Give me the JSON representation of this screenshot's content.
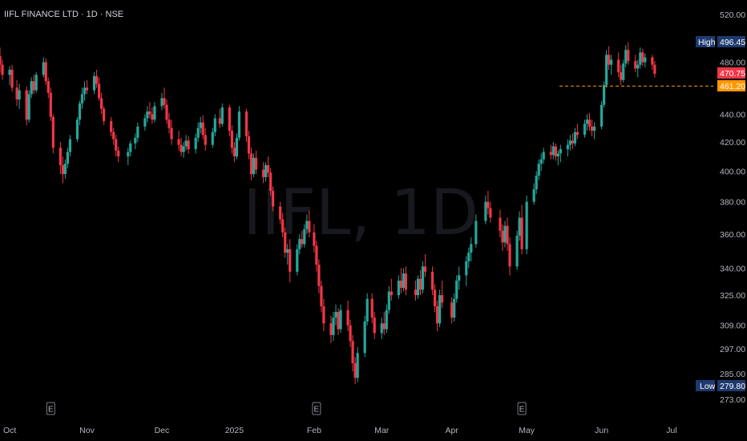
{
  "header": {
    "title": "IIFL FINANCE LTD · 1D · NSE"
  },
  "watermark": "IIFL, 1D",
  "colors": {
    "up": "#26a69a",
    "down": "#f23645",
    "background": "#000000",
    "text": "#b2b5be",
    "high_low_tag": "#1e3a6e",
    "last_price_tag": "#f23645",
    "level_line": "#ff9800"
  },
  "price_tags": {
    "high_label": "High",
    "high_value": "496.45",
    "low_label": "Low",
    "low_value": "279.80",
    "last": "470.75",
    "level": "461.20"
  },
  "events": [
    {
      "label": "E",
      "date": "2024-10-17"
    },
    {
      "label": "E",
      "date": "2025-02-04"
    },
    {
      "label": "E",
      "date": "2025-04-30"
    }
  ],
  "chart_data": {
    "type": "candlestick",
    "title": "IIFL FINANCE LTD · 1D · NSE",
    "y_scale": "log",
    "y_ticks": [
      "520.00",
      "480.00",
      "440.00",
      "420.00",
      "400.00",
      "380.00",
      "360.00",
      "340.00",
      "325.00",
      "309.00",
      "297.00",
      "285.00",
      "273.00"
    ],
    "x_ticks": [
      {
        "label": "Oct",
        "date": "2024-10-01"
      },
      {
        "label": "Nov",
        "date": "2024-11-01"
      },
      {
        "label": "Dec",
        "date": "2024-12-02"
      },
      {
        "label": "2025",
        "date": "2025-01-01"
      },
      {
        "label": "Feb",
        "date": "2025-02-03"
      },
      {
        "label": "Mar",
        "date": "2025-03-03"
      },
      {
        "label": "Apr",
        "date": "2025-04-01"
      },
      {
        "label": "May",
        "date": "2025-05-02"
      },
      {
        "label": "Jun",
        "date": "2025-06-02"
      },
      {
        "label": "Jul",
        "date": "2025-07-01"
      }
    ],
    "level_line": 461.2,
    "high": 496.45,
    "low": 279.8,
    "last": 470.75,
    "candles": [
      [
        "2024-09-26",
        485,
        492,
        472,
        478
      ],
      [
        "2024-09-27",
        478,
        482,
        466,
        470
      ],
      [
        "2024-09-30",
        470,
        477,
        462,
        474
      ],
      [
        "2024-10-01",
        474,
        478,
        457,
        460
      ],
      [
        "2024-10-03",
        460,
        466,
        446,
        451
      ],
      [
        "2024-10-04",
        451,
        463,
        444,
        458
      ],
      [
        "2024-10-07",
        458,
        461,
        432,
        436
      ],
      [
        "2024-10-08",
        436,
        458,
        434,
        455
      ],
      [
        "2024-10-09",
        455,
        468,
        452,
        465
      ],
      [
        "2024-10-10",
        465,
        470,
        455,
        458
      ],
      [
        "2024-10-11",
        458,
        472,
        456,
        470
      ],
      [
        "2024-10-14",
        470,
        484,
        468,
        480
      ],
      [
        "2024-10-15",
        480,
        483,
        462,
        465
      ],
      [
        "2024-10-16",
        465,
        468,
        452,
        456
      ],
      [
        "2024-10-17",
        456,
        460,
        435,
        438
      ],
      [
        "2024-10-18",
        438,
        440,
        412,
        416
      ],
      [
        "2024-10-21",
        416,
        420,
        398,
        404
      ],
      [
        "2024-10-22",
        404,
        410,
        392,
        398
      ],
      [
        "2024-10-23",
        398,
        408,
        395,
        405
      ],
      [
        "2024-10-24",
        405,
        416,
        402,
        413
      ],
      [
        "2024-10-25",
        413,
        425,
        410,
        422
      ],
      [
        "2024-10-28",
        422,
        438,
        420,
        436
      ],
      [
        "2024-10-29",
        436,
        450,
        432,
        448
      ],
      [
        "2024-10-30",
        448,
        460,
        444,
        455
      ],
      [
        "2024-10-31",
        455,
        465,
        450,
        460
      ],
      [
        "2024-11-01",
        460,
        466,
        455,
        458
      ],
      [
        "2024-11-04",
        458,
        472,
        455,
        469
      ],
      [
        "2024-11-05",
        469,
        474,
        460,
        463
      ],
      [
        "2024-11-06",
        463,
        468,
        450,
        452
      ],
      [
        "2024-11-07",
        452,
        456,
        440,
        444
      ],
      [
        "2024-11-08",
        444,
        446,
        432,
        435
      ],
      [
        "2024-11-11",
        435,
        438,
        424,
        427
      ],
      [
        "2024-11-12",
        427,
        430,
        418,
        422
      ],
      [
        "2024-11-13",
        422,
        425,
        410,
        414
      ],
      [
        "2024-11-14",
        414,
        417,
        406,
        410
      ],
      [
        "2024-11-18",
        410,
        416,
        404,
        413
      ],
      [
        "2024-11-19",
        413,
        421,
        410,
        419
      ],
      [
        "2024-11-21",
        419,
        426,
        415,
        423
      ],
      [
        "2024-11-22",
        423,
        434,
        420,
        431
      ],
      [
        "2024-11-25",
        431,
        440,
        428,
        437
      ],
      [
        "2024-11-26",
        437,
        446,
        434,
        442
      ],
      [
        "2024-11-27",
        442,
        449,
        437,
        440
      ],
      [
        "2024-11-28",
        440,
        445,
        433,
        436
      ],
      [
        "2024-11-29",
        436,
        449,
        434,
        446
      ],
      [
        "2024-12-02",
        446,
        456,
        443,
        452
      ],
      [
        "2024-12-03",
        452,
        460,
        444,
        447
      ],
      [
        "2024-12-04",
        447,
        451,
        433,
        436
      ],
      [
        "2024-12-05",
        436,
        441,
        426,
        430
      ],
      [
        "2024-12-06",
        430,
        436,
        418,
        422
      ],
      [
        "2024-12-09",
        422,
        428,
        414,
        418
      ],
      [
        "2024-12-10",
        418,
        423,
        410,
        413
      ],
      [
        "2024-12-11",
        413,
        420,
        409,
        417
      ],
      [
        "2024-12-12",
        417,
        425,
        414,
        421
      ],
      [
        "2024-12-13",
        421,
        424,
        412,
        415
      ],
      [
        "2024-12-16",
        415,
        426,
        412,
        423
      ],
      [
        "2024-12-17",
        423,
        434,
        420,
        430
      ],
      [
        "2024-12-18",
        430,
        438,
        426,
        434
      ],
      [
        "2024-12-19",
        434,
        439,
        422,
        425
      ],
      [
        "2024-12-20",
        425,
        430,
        414,
        418
      ],
      [
        "2024-12-23",
        418,
        430,
        416,
        427
      ],
      [
        "2024-12-24",
        427,
        440,
        424,
        437
      ],
      [
        "2024-12-26",
        437,
        444,
        430,
        433
      ],
      [
        "2024-12-27",
        433,
        448,
        431,
        445
      ],
      [
        "2024-12-30",
        445,
        447,
        424,
        428
      ],
      [
        "2024-12-31",
        428,
        432,
        412,
        416
      ],
      [
        "2025-01-01",
        416,
        420,
        406,
        410
      ],
      [
        "2025-01-02",
        410,
        426,
        408,
        423
      ],
      [
        "2025-01-03",
        423,
        446,
        421,
        442
      ],
      [
        "2025-01-06",
        442,
        444,
        420,
        424
      ],
      [
        "2025-01-07",
        424,
        428,
        408,
        412
      ],
      [
        "2025-01-08",
        412,
        416,
        394,
        398
      ],
      [
        "2025-01-09",
        398,
        412,
        396,
        409
      ],
      [
        "2025-01-10",
        409,
        414,
        398,
        401
      ],
      [
        "2025-01-13",
        401,
        406,
        392,
        396
      ],
      [
        "2025-01-14",
        396,
        406,
        393,
        404
      ],
      [
        "2025-01-15",
        404,
        410,
        396,
        399
      ],
      [
        "2025-01-16",
        399,
        402,
        384,
        387
      ],
      [
        "2025-01-17",
        387,
        390,
        374,
        377
      ],
      [
        "2025-01-20",
        377,
        380,
        366,
        369
      ],
      [
        "2025-01-21",
        369,
        373,
        358,
        361
      ],
      [
        "2025-01-22",
        361,
        364,
        346,
        349
      ],
      [
        "2025-01-23",
        349,
        354,
        342,
        351
      ],
      [
        "2025-01-24",
        351,
        357,
        332,
        338
      ],
      [
        "2025-01-27",
        338,
        354,
        336,
        351
      ],
      [
        "2025-01-28",
        351,
        360,
        348,
        357
      ],
      [
        "2025-01-29",
        357,
        362,
        352,
        354
      ],
      [
        "2025-01-30",
        354,
        366,
        352,
        363
      ],
      [
        "2025-01-31",
        363,
        372,
        360,
        368
      ],
      [
        "2025-02-01",
        368,
        374,
        358,
        361
      ],
      [
        "2025-02-03",
        361,
        366,
        349,
        353
      ],
      [
        "2025-02-04",
        353,
        356,
        338,
        342
      ],
      [
        "2025-02-05",
        342,
        345,
        326,
        330
      ],
      [
        "2025-02-06",
        330,
        333,
        316,
        319
      ],
      [
        "2025-02-07",
        319,
        323,
        306,
        310
      ],
      [
        "2025-02-10",
        310,
        314,
        300,
        304
      ],
      [
        "2025-02-11",
        304,
        316,
        301,
        313
      ],
      [
        "2025-02-12",
        313,
        320,
        309,
        316
      ],
      [
        "2025-02-13",
        316,
        318,
        304,
        307
      ],
      [
        "2025-02-14",
        307,
        320,
        305,
        317
      ],
      [
        "2025-02-17",
        317,
        322,
        306,
        309
      ],
      [
        "2025-02-18",
        309,
        312,
        298,
        301
      ],
      [
        "2025-02-19",
        301,
        304,
        286,
        290
      ],
      [
        "2025-02-20",
        290,
        293,
        280,
        283
      ],
      [
        "2025-02-21",
        283,
        298,
        281,
        295
      ],
      [
        "2025-02-24",
        295,
        314,
        293,
        311
      ],
      [
        "2025-02-25",
        311,
        326,
        309,
        323
      ],
      [
        "2025-02-27",
        323,
        326,
        310,
        313
      ],
      [
        "2025-02-28",
        313,
        316,
        302,
        305
      ],
      [
        "2025-03-03",
        305,
        313,
        302,
        310
      ],
      [
        "2025-03-04",
        310,
        316,
        304,
        307
      ],
      [
        "2025-03-05",
        307,
        320,
        305,
        317
      ],
      [
        "2025-03-06",
        317,
        330,
        315,
        327
      ],
      [
        "2025-03-07",
        327,
        334,
        322,
        325
      ],
      [
        "2025-03-10",
        325,
        336,
        323,
        333
      ],
      [
        "2025-03-11",
        333,
        340,
        326,
        329
      ],
      [
        "2025-03-12",
        329,
        340,
        327,
        337
      ],
      [
        "2025-03-13",
        337,
        341,
        325,
        328
      ],
      [
        "2025-03-17",
        328,
        333,
        322,
        325
      ],
      [
        "2025-03-18",
        325,
        336,
        323,
        334
      ],
      [
        "2025-03-19",
        334,
        339,
        325,
        328
      ],
      [
        "2025-03-20",
        328,
        344,
        326,
        341
      ],
      [
        "2025-03-21",
        341,
        348,
        335,
        338
      ],
      [
        "2025-03-24",
        338,
        341,
        325,
        328
      ],
      [
        "2025-03-25",
        328,
        331,
        316,
        319
      ],
      [
        "2025-03-26",
        319,
        322,
        306,
        310
      ],
      [
        "2025-03-27",
        310,
        328,
        308,
        325
      ],
      [
        "2025-03-28",
        325,
        333,
        318,
        321
      ],
      [
        "2025-04-01",
        321,
        324,
        310,
        313
      ],
      [
        "2025-04-02",
        313,
        326,
        311,
        323
      ],
      [
        "2025-04-03",
        323,
        336,
        321,
        333
      ],
      [
        "2025-04-04",
        333,
        341,
        328,
        336
      ],
      [
        "2025-04-07",
        336,
        347,
        330,
        344
      ],
      [
        "2025-04-08",
        344,
        352,
        340,
        349
      ],
      [
        "2025-04-09",
        349,
        358,
        344,
        354
      ],
      [
        "2025-04-11",
        354,
        372,
        352,
        368
      ],
      [
        "2025-04-15",
        368,
        384,
        366,
        380
      ],
      [
        "2025-04-16",
        380,
        387,
        372,
        376
      ],
      [
        "2025-04-17",
        376,
        380,
        367,
        370
      ],
      [
        "2025-04-21",
        370,
        375,
        358,
        362
      ],
      [
        "2025-04-22",
        362,
        366,
        350,
        355
      ],
      [
        "2025-04-23",
        355,
        368,
        352,
        365
      ],
      [
        "2025-04-24",
        365,
        370,
        350,
        354
      ],
      [
        "2025-04-25",
        354,
        358,
        336,
        341
      ],
      [
        "2025-04-28",
        341,
        362,
        339,
        359
      ],
      [
        "2025-04-29",
        359,
        374,
        356,
        370
      ],
      [
        "2025-04-30",
        370,
        378,
        348,
        351
      ],
      [
        "2025-05-02",
        351,
        384,
        348,
        380
      ],
      [
        "2025-05-05",
        380,
        392,
        378,
        388
      ],
      [
        "2025-05-06",
        388,
        400,
        385,
        397
      ],
      [
        "2025-05-07",
        397,
        408,
        394,
        405
      ],
      [
        "2025-05-08",
        405,
        412,
        400,
        408
      ],
      [
        "2025-05-09",
        408,
        416,
        405,
        413
      ],
      [
        "2025-05-12",
        413,
        418,
        408,
        411
      ],
      [
        "2025-05-13",
        411,
        420,
        408,
        417
      ],
      [
        "2025-05-14",
        417,
        419,
        407,
        410
      ],
      [
        "2025-05-15",
        410,
        414,
        404,
        412
      ],
      [
        "2025-05-16",
        412,
        418,
        406,
        415
      ],
      [
        "2025-05-19",
        415,
        422,
        410,
        418
      ],
      [
        "2025-05-20",
        418,
        425,
        414,
        421
      ],
      [
        "2025-05-21",
        421,
        426,
        415,
        419
      ],
      [
        "2025-05-22",
        419,
        430,
        417,
        427
      ],
      [
        "2025-05-23",
        427,
        433,
        422,
        425
      ],
      [
        "2025-05-26",
        425,
        436,
        423,
        433
      ],
      [
        "2025-05-27",
        433,
        440,
        428,
        436
      ],
      [
        "2025-05-28",
        436,
        441,
        428,
        431
      ],
      [
        "2025-05-29",
        431,
        436,
        424,
        428
      ],
      [
        "2025-05-30",
        428,
        434,
        422,
        431
      ],
      [
        "2025-06-02",
        431,
        450,
        429,
        447
      ],
      [
        "2025-06-03",
        447,
        465,
        445,
        462
      ],
      [
        "2025-06-04",
        462,
        490,
        460,
        486
      ],
      [
        "2025-06-05",
        486,
        493,
        474,
        478
      ],
      [
        "2025-06-06",
        478,
        486,
        470,
        482
      ],
      [
        "2025-06-09",
        482,
        488,
        468,
        472
      ],
      [
        "2025-06-10",
        472,
        478,
        462,
        466
      ],
      [
        "2025-06-11",
        466,
        482,
        464,
        479
      ],
      [
        "2025-06-12",
        479,
        494,
        476,
        490
      ],
      [
        "2025-06-13",
        490,
        496.45,
        478,
        481
      ],
      [
        "2025-06-16",
        481,
        486,
        472,
        475
      ],
      [
        "2025-06-17",
        475,
        482,
        468,
        478
      ],
      [
        "2025-06-18",
        478,
        492,
        475,
        488
      ],
      [
        "2025-06-19",
        488,
        491,
        477,
        480
      ],
      [
        "2025-06-20",
        480,
        487,
        476,
        484
      ],
      [
        "2025-06-23",
        484,
        486,
        474,
        478
      ],
      [
        "2025-06-24",
        478,
        481,
        468,
        470.75
      ]
    ]
  }
}
